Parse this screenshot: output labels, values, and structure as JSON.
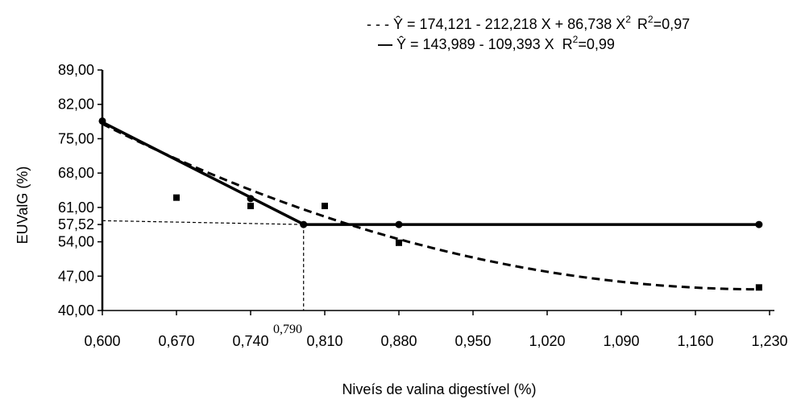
{
  "chart_data": {
    "type": "line",
    "xlabel": "Niveís de valina digestível (%)",
    "ylabel": "EUValG (%)",
    "xlim": [
      0.6,
      1.23
    ],
    "ylim": [
      40,
      89
    ],
    "x_ticks": [
      "0,600",
      "0,670",
      "0,740",
      "0,810",
      "0,880",
      "0,950",
      "1,020",
      "1,090",
      "1,160",
      "1,230"
    ],
    "y_ticks": [
      "40,00",
      "47,00",
      "54,00",
      "57,52",
      "61,00",
      "68,00",
      "75,00",
      "82,00",
      "89,00"
    ],
    "y_tick_values": [
      40,
      47,
      54,
      57.52,
      61,
      68,
      75,
      82,
      89
    ],
    "annotation_x": "0,790",
    "breakpoint": {
      "x": 0.79,
      "y": 57.52
    },
    "legend": [
      {
        "style": "dashed",
        "prefix": "- - - ",
        "eq": "Ŷ = 174,121 - 212,218 X + 86,738 X",
        "sup": "2",
        "r2_prefix": "R",
        "r2_sup": "2",
        "r2_value": "=0,97"
      },
      {
        "style": "solid",
        "prefix": "— ",
        "eq": "Ŷ = 143,989 - 109,393 X",
        "sup": "",
        "r2_prefix": "R",
        "r2_sup": "2",
        "r2_value": "=0,99"
      }
    ],
    "series": [
      {
        "model": "quadratic",
        "style": "dashed",
        "coefficients": [
          174.121,
          -212.218,
          86.738
        ],
        "x_range": [
          0.6,
          1.22
        ]
      },
      {
        "model": "linear-plateau",
        "style": "solid",
        "coefficients": [
          143.989,
          -109.393
        ],
        "plateau": 57.52,
        "x_range": [
          0.6,
          1.22
        ]
      }
    ],
    "observed": {
      "squares": [
        {
          "x": 0.67,
          "y": 63.0
        },
        {
          "x": 0.74,
          "y": 61.3
        },
        {
          "x": 0.81,
          "y": 61.3
        },
        {
          "x": 0.88,
          "y": 53.8
        },
        {
          "x": 1.22,
          "y": 44.7
        }
      ],
      "circles": [
        {
          "x": 0.6,
          "y": 78.6
        },
        {
          "x": 0.74,
          "y": 62.8
        },
        {
          "x": 0.79,
          "y": 57.52
        },
        {
          "x": 0.88,
          "y": 57.52
        },
        {
          "x": 1.22,
          "y": 57.52
        }
      ]
    }
  }
}
